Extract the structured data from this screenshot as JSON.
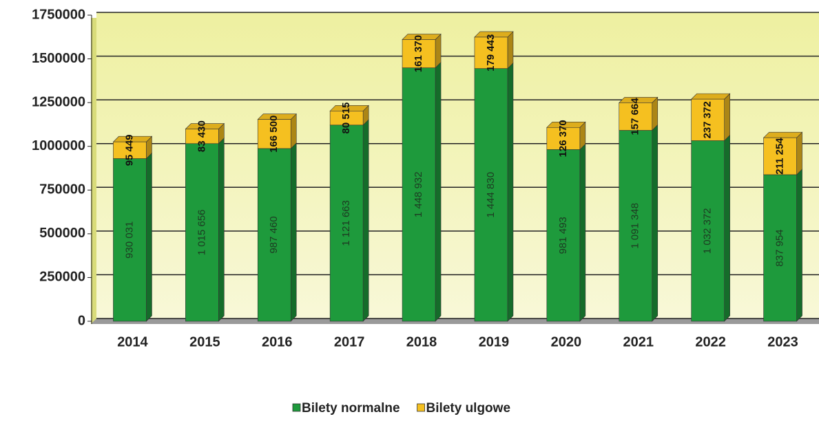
{
  "chart_data": {
    "type": "stacked_bar",
    "categories": [
      "2014",
      "2015",
      "2016",
      "2017",
      "2018",
      "2019",
      "2020",
      "2021",
      "2022",
      "2023"
    ],
    "series": [
      {
        "name": "Bilety normalne",
        "color": "#1e9a3c",
        "values": [
          930031,
          1015656,
          987460,
          1121663,
          1448932,
          1444830,
          981493,
          1091348,
          1032372,
          837954
        ],
        "value_labels": [
          "930 031",
          "1 015 656",
          "987 460",
          "1 121 663",
          "1 448 932",
          "1 444 830",
          "981 493",
          "1 091 348",
          "1 032 372",
          "837 954"
        ]
      },
      {
        "name": "Bilety ulgowe",
        "color": "#f5c020",
        "values": [
          95449,
          83430,
          166500,
          80515,
          161370,
          179443,
          126370,
          157664,
          237372,
          211254
        ],
        "value_labels": [
          "95 449",
          "83 430",
          "166 500",
          "80 515",
          "161 370",
          "179 443",
          "126 370",
          "157 664",
          "237 372",
          "211 254"
        ]
      }
    ],
    "ylim": [
      0,
      1750000
    ],
    "yticks": [
      0,
      250000,
      500000,
      750000,
      1000000,
      1250000,
      1500000,
      1750000
    ],
    "grid": true,
    "legend": "bottom"
  }
}
